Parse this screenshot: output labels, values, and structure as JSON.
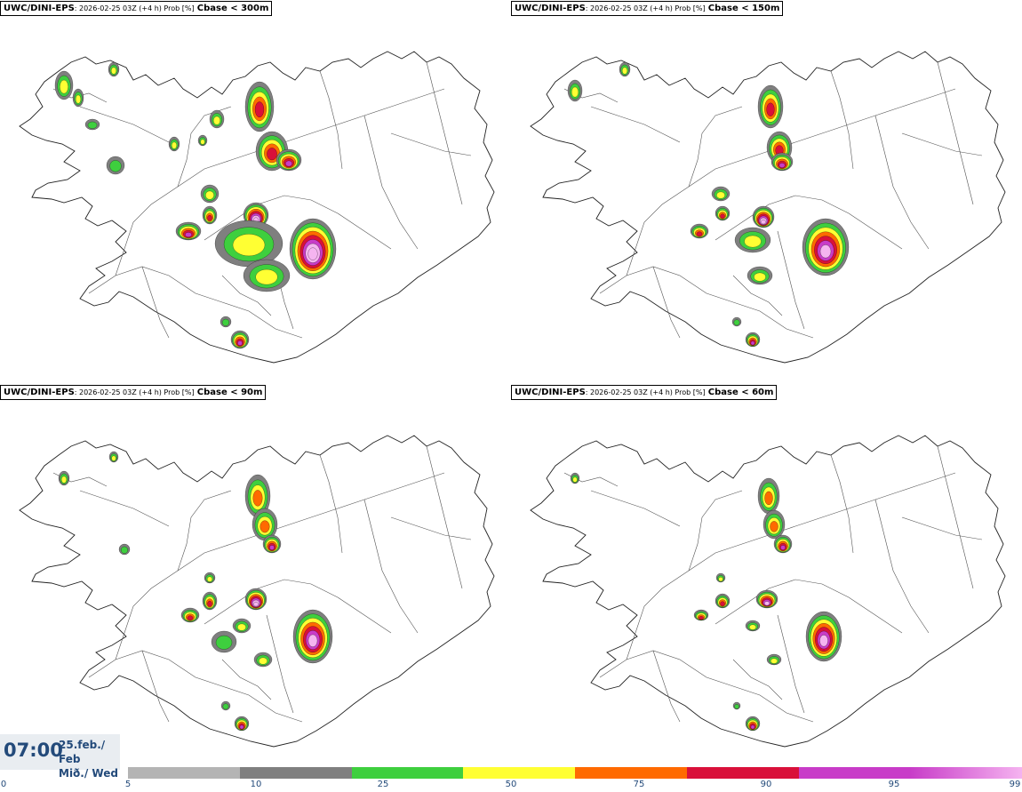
{
  "panels": [
    {
      "model": "UWC/DINI-EPS",
      "meta": ": 2026-02-25 03Z (+4 h) Prob [%]",
      "variable": "Cbase < 300m"
    },
    {
      "model": "UWC/DINI-EPS",
      "meta": ": 2026-02-25 03Z (+4 h) Prob [%]",
      "variable": "Cbase < 150m"
    },
    {
      "model": "UWC/DINI-EPS",
      "meta": ": 2026-02-25 03Z (+4 h) Prob [%]",
      "variable": "Cbase < 90m"
    },
    {
      "model": "UWC/DINI-EPS",
      "meta": ": 2026-02-25 03Z (+4 h) Prob [%]",
      "variable": "Cbase < 60m"
    }
  ],
  "timebox": {
    "time": "07:00",
    "date_line1": "25.feb./ Feb",
    "date_line2": "Mið./ Wed"
  },
  "legend": {
    "ticks": [
      "0",
      "5",
      "10",
      "25",
      "50",
      "75",
      "90",
      "95",
      "99"
    ],
    "colors": [
      "#b4b4b4",
      "#7f7f7f",
      "#3ecf3e",
      "#ffff33",
      "#ff6a00",
      "#d9103a",
      "#c83cc8",
      "#f5b4f0"
    ]
  }
}
